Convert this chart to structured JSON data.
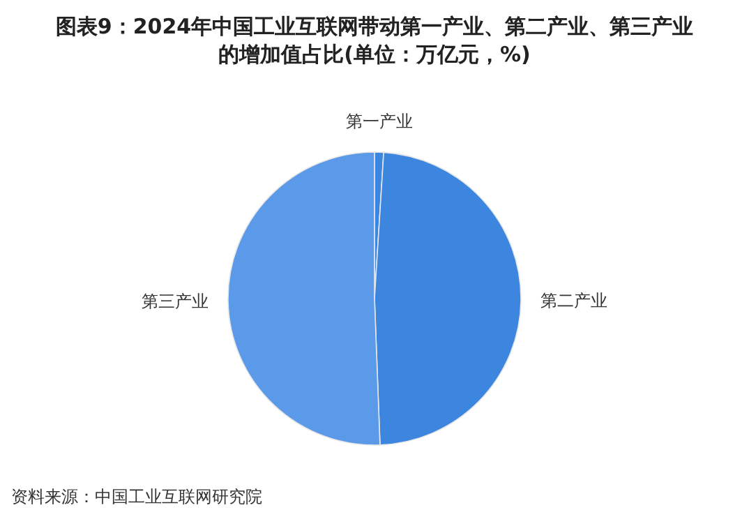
{
  "chart_data": {
    "type": "pie",
    "title": "图表9：2024年中国工业互联网带动第一产业、第二产业、第三产业的增加值占比(单位：万亿元，%)",
    "categories": [
      "第一产业",
      "第二产业",
      "第三产业"
    ],
    "values": [
      1.0,
      48.4,
      50.6
    ],
    "colors": [
      "#3d86e0",
      "#3d86e0",
      "#5b9ae8"
    ],
    "annotations": [
      "资料来源：中国工业互联网研究院"
    ]
  }
}
